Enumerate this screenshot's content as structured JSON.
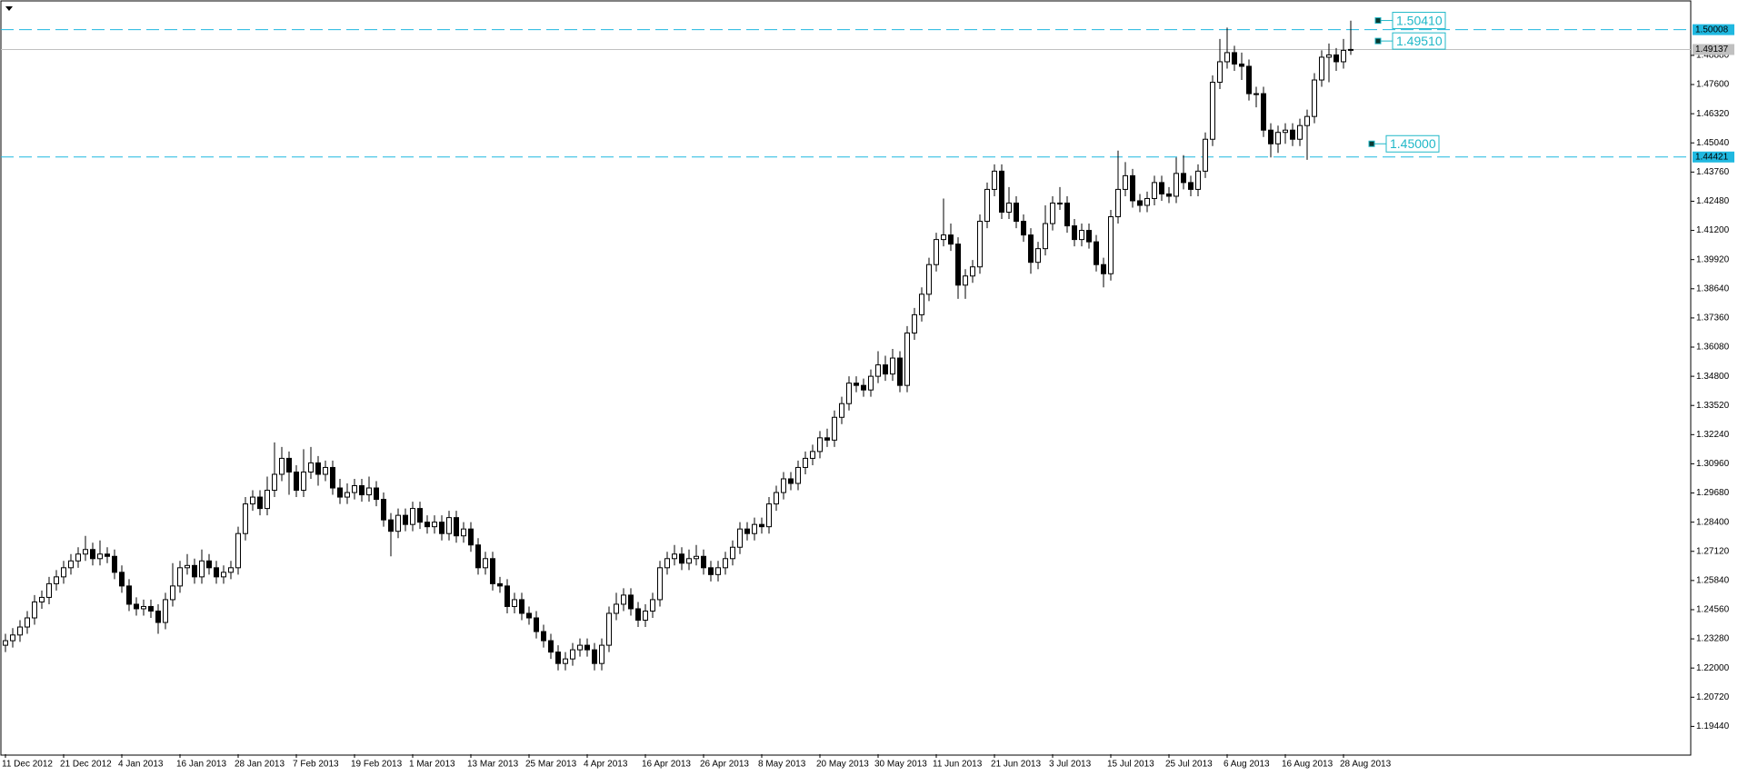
{
  "chart_data": {
    "type": "candlestick",
    "ylim": [
      1.1822,
      1.5107
    ],
    "yticks": [
      {
        "value": 1.1944,
        "label": "1.19440"
      },
      {
        "value": 1.2072,
        "label": "1.20720"
      },
      {
        "value": 1.22,
        "label": "1.22000"
      },
      {
        "value": 1.2328,
        "label": "1.23280"
      },
      {
        "value": 1.2456,
        "label": "1.24560"
      },
      {
        "value": 1.2584,
        "label": "1.25840"
      },
      {
        "value": 1.2712,
        "label": "1.27120"
      },
      {
        "value": 1.284,
        "label": "1.28400"
      },
      {
        "value": 1.2968,
        "label": "1.29680"
      },
      {
        "value": 1.3096,
        "label": "1.30960"
      },
      {
        "value": 1.3224,
        "label": "1.32240"
      },
      {
        "value": 1.3352,
        "label": "1.33520"
      },
      {
        "value": 1.348,
        "label": "1.34800"
      },
      {
        "value": 1.3608,
        "label": "1.36080"
      },
      {
        "value": 1.3736,
        "label": "1.37360"
      },
      {
        "value": 1.3864,
        "label": "1.38640"
      },
      {
        "value": 1.3992,
        "label": "1.39920"
      },
      {
        "value": 1.412,
        "label": "1.41200"
      },
      {
        "value": 1.4248,
        "label": "1.42480"
      },
      {
        "value": 1.4376,
        "label": "1.43760"
      },
      {
        "value": 1.4504,
        "label": "1.45040"
      },
      {
        "value": 1.4632,
        "label": "1.46320"
      },
      {
        "value": 1.476,
        "label": "1.47600"
      },
      {
        "value": 1.4888,
        "label": "1.48880"
      }
    ],
    "categories": [
      "11 Dec 2012",
      null,
      null,
      null,
      null,
      null,
      null,
      null,
      "21 Dec 2012",
      null,
      null,
      null,
      null,
      null,
      null,
      null,
      "4 Jan 2013",
      null,
      null,
      null,
      null,
      null,
      null,
      null,
      "16 Jan 2013",
      null,
      null,
      null,
      null,
      null,
      null,
      null,
      "28 Jan 2013",
      null,
      null,
      null,
      null,
      null,
      null,
      null,
      "7 Feb 2013",
      null,
      null,
      null,
      null,
      null,
      null,
      null,
      "19 Feb 2013",
      null,
      null,
      null,
      null,
      null,
      null,
      null,
      "1 Mar 2013",
      null,
      null,
      null,
      null,
      null,
      null,
      null,
      "13 Mar 2013",
      null,
      null,
      null,
      null,
      null,
      null,
      null,
      "25 Mar 2013",
      null,
      null,
      null,
      null,
      null,
      null,
      null,
      "4 Apr 2013",
      null,
      null,
      null,
      null,
      null,
      null,
      null,
      "16 Apr 2013",
      null,
      null,
      null,
      null,
      null,
      null,
      null,
      "26 Apr 2013",
      null,
      null,
      null,
      null,
      null,
      null,
      null,
      "8 May 2013",
      null,
      null,
      null,
      null,
      null,
      null,
      null,
      "20 May 2013",
      null,
      null,
      null,
      null,
      null,
      null,
      null,
      "30 May 2013",
      null,
      null,
      null,
      null,
      null,
      null,
      null,
      "11 Jun 2013",
      null,
      null,
      null,
      null,
      null,
      null,
      null,
      "21 Jun 2013",
      null,
      null,
      null,
      null,
      null,
      null,
      null,
      "3 Jul 2013",
      null,
      null,
      null,
      null,
      null,
      null,
      null,
      "15 Jul 2013",
      null,
      null,
      null,
      null,
      null,
      null,
      null,
      "25 Jul 2013",
      null,
      null,
      null,
      null,
      null,
      null,
      null,
      "6 Aug 2013",
      null,
      null,
      null,
      null,
      null,
      null,
      null,
      "16 Aug 2013",
      null,
      null,
      null,
      null,
      null,
      null,
      null,
      "28 Aug 2013",
      null
    ],
    "open": [
      1.23,
      1.232,
      1.2345,
      1.238,
      1.242,
      1.249,
      1.251,
      1.257,
      1.26,
      1.264,
      1.267,
      1.27,
      1.272,
      1.268,
      1.27,
      1.269,
      1.262,
      1.256,
      1.248,
      1.246,
      1.247,
      1.245,
      1.24,
      1.25,
      1.256,
      1.264,
      1.265,
      1.26,
      1.267,
      1.264,
      1.26,
      1.262,
      1.264,
      1.279,
      1.292,
      1.295,
      1.29,
      1.298,
      1.305,
      1.312,
      1.306,
      1.298,
      1.306,
      1.31,
      1.305,
      1.308,
      1.299,
      1.295,
      1.297,
      1.3,
      1.296,
      1.299,
      1.294,
      1.285,
      1.28,
      1.287,
      1.283,
      1.29,
      1.284,
      1.282,
      1.284,
      1.279,
      1.286,
      1.278,
      1.281,
      1.274,
      1.264,
      1.268,
      1.257,
      1.256,
      1.247,
      1.25,
      1.244,
      1.242,
      1.236,
      1.232,
      1.227,
      1.222,
      1.224,
      1.228,
      1.23,
      1.228,
      1.222,
      1.23,
      1.244,
      1.248,
      1.252,
      1.246,
      1.241,
      1.245,
      1.25,
      1.264,
      1.268,
      1.27,
      1.266,
      1.268,
      1.269,
      1.264,
      1.261,
      1.264,
      1.268,
      1.273,
      1.281,
      1.279,
      1.283,
      1.282,
      1.292,
      1.297,
      1.303,
      1.301,
      1.308,
      1.312,
      1.315,
      1.321,
      1.32,
      1.33,
      1.336,
      1.345,
      1.344,
      1.342,
      1.348,
      1.353,
      1.349,
      1.356,
      1.344,
      1.367,
      1.375,
      1.384,
      1.397,
      1.408,
      1.41,
      1.406,
      1.388,
      1.392,
      1.396,
      1.416,
      1.43,
      1.438,
      1.42,
      1.424,
      1.416,
      1.41,
      1.398,
      1.404,
      1.415,
      1.424,
      1.424,
      1.414,
      1.408,
      1.412,
      1.407,
      1.397,
      1.393,
      1.418,
      1.43,
      1.436,
      1.425,
      1.423,
      1.426,
      1.433,
      1.428,
      1.427,
      1.437,
      1.433,
      1.43,
      1.438,
      1.452,
      1.477,
      1.486,
      1.49,
      1.485,
      1.484,
      1.472,
      1.472,
      1.456,
      1.45,
      1.455,
      1.456,
      1.452,
      1.458,
      1.462,
      1.478,
      1.488,
      1.489,
      1.486,
      1.491
    ],
    "high": [
      1.235,
      1.2375,
      1.241,
      1.245,
      1.252,
      1.254,
      1.26,
      1.263,
      1.267,
      1.27,
      1.273,
      1.278,
      1.275,
      1.276,
      1.273,
      1.272,
      1.265,
      1.259,
      1.251,
      1.25,
      1.25,
      1.248,
      1.253,
      1.266,
      1.267,
      1.27,
      1.268,
      1.272,
      1.27,
      1.267,
      1.265,
      1.267,
      1.282,
      1.295,
      1.298,
      1.298,
      1.304,
      1.319,
      1.317,
      1.315,
      1.309,
      1.316,
      1.317,
      1.313,
      1.311,
      1.311,
      1.303,
      1.301,
      1.303,
      1.303,
      1.304,
      1.302,
      1.297,
      1.288,
      1.29,
      1.29,
      1.293,
      1.293,
      1.287,
      1.287,
      1.287,
      1.289,
      1.289,
      1.284,
      1.284,
      1.277,
      1.271,
      1.271,
      1.26,
      1.259,
      1.253,
      1.253,
      1.247,
      1.245,
      1.239,
      1.235,
      1.23,
      1.227,
      1.231,
      1.233,
      1.233,
      1.231,
      1.233,
      1.247,
      1.253,
      1.255,
      1.255,
      1.249,
      1.248,
      1.253,
      1.267,
      1.271,
      1.274,
      1.273,
      1.272,
      1.274,
      1.272,
      1.267,
      1.267,
      1.271,
      1.276,
      1.284,
      1.284,
      1.286,
      1.286,
      1.295,
      1.3,
      1.306,
      1.306,
      1.311,
      1.315,
      1.318,
      1.324,
      1.325,
      1.333,
      1.339,
      1.348,
      1.348,
      1.347,
      1.351,
      1.359,
      1.357,
      1.36,
      1.359,
      1.37,
      1.378,
      1.387,
      1.4,
      1.411,
      1.426,
      1.415,
      1.409,
      1.395,
      1.399,
      1.419,
      1.433,
      1.441,
      1.441,
      1.431,
      1.427,
      1.419,
      1.413,
      1.407,
      1.423,
      1.427,
      1.431,
      1.427,
      1.417,
      1.415,
      1.415,
      1.41,
      1.4,
      1.421,
      1.447,
      1.442,
      1.439,
      1.428,
      1.429,
      1.436,
      1.436,
      1.431,
      1.444,
      1.445,
      1.436,
      1.441,
      1.455,
      1.48,
      1.496,
      1.501,
      1.493,
      1.49,
      1.487,
      1.475,
      1.475,
      1.459,
      1.458,
      1.459,
      1.459,
      1.461,
      1.465,
      1.481,
      1.491,
      1.494,
      1.492,
      1.496,
      1.504
    ],
    "low": [
      1.227,
      1.229,
      1.2315,
      1.235,
      1.239,
      1.246,
      1.248,
      1.254,
      1.257,
      1.261,
      1.264,
      1.267,
      1.265,
      1.265,
      1.266,
      1.259,
      1.253,
      1.245,
      1.243,
      1.243,
      1.242,
      1.235,
      1.237,
      1.247,
      1.253,
      1.261,
      1.257,
      1.257,
      1.261,
      1.257,
      1.257,
      1.259,
      1.261,
      1.276,
      1.289,
      1.287,
      1.287,
      1.295,
      1.302,
      1.296,
      1.295,
      1.295,
      1.303,
      1.3,
      1.302,
      1.296,
      1.292,
      1.292,
      1.294,
      1.293,
      1.293,
      1.291,
      1.282,
      1.269,
      1.277,
      1.28,
      1.28,
      1.281,
      1.279,
      1.279,
      1.276,
      1.276,
      1.275,
      1.275,
      1.271,
      1.261,
      1.261,
      1.254,
      1.253,
      1.244,
      1.244,
      1.241,
      1.239,
      1.233,
      1.229,
      1.224,
      1.219,
      1.219,
      1.221,
      1.225,
      1.225,
      1.219,
      1.219,
      1.227,
      1.241,
      1.245,
      1.243,
      1.238,
      1.238,
      1.242,
      1.247,
      1.261,
      1.265,
      1.263,
      1.263,
      1.265,
      1.261,
      1.258,
      1.258,
      1.261,
      1.265,
      1.27,
      1.276,
      1.276,
      1.279,
      1.279,
      1.289,
      1.294,
      1.298,
      1.298,
      1.305,
      1.309,
      1.312,
      1.317,
      1.317,
      1.327,
      1.333,
      1.341,
      1.339,
      1.339,
      1.345,
      1.346,
      1.346,
      1.341,
      1.341,
      1.364,
      1.372,
      1.381,
      1.394,
      1.405,
      1.403,
      1.382,
      1.382,
      1.389,
      1.393,
      1.413,
      1.427,
      1.417,
      1.417,
      1.413,
      1.407,
      1.393,
      1.395,
      1.401,
      1.412,
      1.421,
      1.411,
      1.405,
      1.405,
      1.404,
      1.394,
      1.387,
      1.39,
      1.415,
      1.427,
      1.422,
      1.42,
      1.42,
      1.423,
      1.425,
      1.424,
      1.424,
      1.43,
      1.427,
      1.427,
      1.435,
      1.449,
      1.474,
      1.483,
      1.482,
      1.478,
      1.469,
      1.466,
      1.453,
      1.444,
      1.446,
      1.45,
      1.449,
      1.449,
      1.443,
      1.459,
      1.475,
      1.477,
      1.482,
      1.483,
      1.489
    ],
    "close": [
      1.232,
      1.2345,
      1.238,
      1.242,
      1.249,
      1.251,
      1.257,
      1.26,
      1.264,
      1.267,
      1.27,
      1.272,
      1.268,
      1.27,
      1.269,
      1.262,
      1.256,
      1.248,
      1.246,
      1.247,
      1.245,
      1.24,
      1.25,
      1.256,
      1.264,
      1.265,
      1.26,
      1.267,
      1.264,
      1.26,
      1.262,
      1.264,
      1.279,
      1.292,
      1.295,
      1.29,
      1.298,
      1.305,
      1.312,
      1.306,
      1.298,
      1.306,
      1.31,
      1.305,
      1.308,
      1.299,
      1.295,
      1.297,
      1.3,
      1.296,
      1.299,
      1.294,
      1.285,
      1.28,
      1.287,
      1.283,
      1.29,
      1.284,
      1.282,
      1.284,
      1.279,
      1.286,
      1.278,
      1.281,
      1.274,
      1.264,
      1.268,
      1.257,
      1.256,
      1.247,
      1.25,
      1.244,
      1.242,
      1.236,
      1.232,
      1.227,
      1.222,
      1.224,
      1.228,
      1.23,
      1.228,
      1.222,
      1.23,
      1.244,
      1.248,
      1.252,
      1.246,
      1.241,
      1.245,
      1.25,
      1.264,
      1.268,
      1.27,
      1.266,
      1.268,
      1.269,
      1.264,
      1.261,
      1.264,
      1.268,
      1.273,
      1.281,
      1.279,
      1.283,
      1.282,
      1.292,
      1.297,
      1.303,
      1.301,
      1.308,
      1.312,
      1.315,
      1.321,
      1.32,
      1.33,
      1.336,
      1.345,
      1.344,
      1.342,
      1.348,
      1.353,
      1.349,
      1.356,
      1.344,
      1.367,
      1.375,
      1.384,
      1.397,
      1.408,
      1.41,
      1.406,
      1.388,
      1.392,
      1.396,
      1.416,
      1.43,
      1.438,
      1.42,
      1.424,
      1.416,
      1.41,
      1.398,
      1.404,
      1.415,
      1.424,
      1.424,
      1.414,
      1.408,
      1.412,
      1.407,
      1.397,
      1.393,
      1.418,
      1.43,
      1.436,
      1.425,
      1.423,
      1.426,
      1.433,
      1.428,
      1.427,
      1.437,
      1.433,
      1.43,
      1.438,
      1.452,
      1.477,
      1.486,
      1.49,
      1.485,
      1.484,
      1.472,
      1.472,
      1.456,
      1.45,
      1.455,
      1.456,
      1.452,
      1.458,
      1.462,
      1.478,
      1.488,
      1.489,
      1.486,
      1.491,
      1.4914
    ],
    "up_color": "#ffffff",
    "down_color": "#000000",
    "wick_color": "#000000",
    "hlines": [
      {
        "value": 1.50008,
        "label": "1.50008",
        "color": "#1fb8e0",
        "dashed": true
      },
      {
        "value": 1.44421,
        "label": "1.44421",
        "color": "#1fb8e0",
        "dashed": true
      },
      {
        "value": 1.49137,
        "label": "1.49137",
        "color": "#c0c0c0",
        "dashed": false
      }
    ],
    "annotations": [
      {
        "value": 1.5041,
        "label": "1.50410"
      },
      {
        "value": 1.4951,
        "label": "1.49510"
      },
      {
        "value": 1.45,
        "label": "1.45000"
      }
    ]
  }
}
